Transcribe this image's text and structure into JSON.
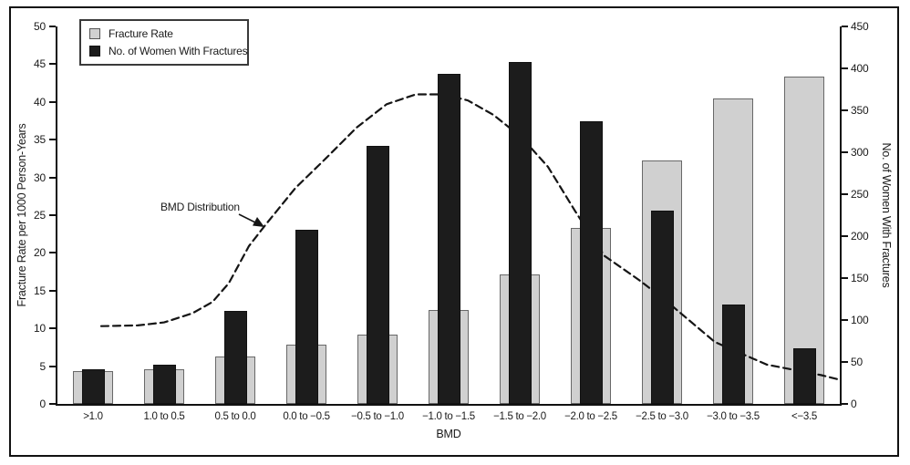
{
  "figure": {
    "legend": [
      {
        "label": "Fracture Rate",
        "swatch_color": "#d0d0d0"
      },
      {
        "label": "No. of Women With Fractures",
        "swatch_color": "#1c1c1c"
      }
    ],
    "annotation": "BMD Distribution",
    "colors": {
      "fracture_rate_bar": "#d0d0d0",
      "women_count_bar": "#1c1c1c",
      "axis": "#111111"
    }
  },
  "chart_data": {
    "type": "bar",
    "title": "",
    "xlabel": "BMD",
    "ylabel": "Fracture Rate per 1000 Person-Years",
    "ylabel_right": "No. of Women With Fractures",
    "categories": [
      ">1.0",
      "1.0 to 0.5",
      "0.5 to 0.0",
      "0.0 to −0.5",
      "−0.5 to −1.0",
      "−1.0 to −1.5",
      "−1.5 to −2.0",
      "−2.0 to −2.5",
      "−2.5 to −3.0",
      "−3.0 to −3.5",
      "<−3.5"
    ],
    "series": [
      {
        "name": "Fracture Rate",
        "axis": "left",
        "color": "#d0d0d0",
        "values": [
          4.3,
          4.6,
          6.3,
          7.8,
          9.2,
          12.4,
          17.1,
          23.3,
          32.2,
          40.5,
          43.4
        ]
      },
      {
        "name": "No. of Women With Fractures",
        "axis": "right",
        "color": "#1c1c1c",
        "values": [
          41,
          47,
          111,
          208,
          308,
          393,
          408,
          337,
          230,
          118,
          66
        ]
      }
    ],
    "curve": {
      "name": "BMD Distribution",
      "axis": "left",
      "style": "dashed",
      "points": [
        [
          48,
          10.3
        ],
        [
          88,
          10.4
        ],
        [
          117,
          10.8
        ],
        [
          148,
          12.0
        ],
        [
          170,
          13.5
        ],
        [
          188,
          16.0
        ],
        [
          210,
          20.9
        ],
        [
          228,
          23.7
        ],
        [
          261,
          28.6
        ],
        [
          295,
          32.6
        ],
        [
          328,
          36.6
        ],
        [
          361,
          39.7
        ],
        [
          393,
          41.0
        ],
        [
          423,
          41.0
        ],
        [
          450,
          40.2
        ],
        [
          478,
          38.3
        ],
        [
          509,
          35.3
        ],
        [
          538,
          31.4
        ],
        [
          568,
          25.5
        ],
        [
          585,
          22.3
        ],
        [
          600,
          19.6
        ],
        [
          638,
          16.4
        ],
        [
          668,
          13.6
        ],
        [
          721,
          8.2
        ],
        [
          778,
          5.2
        ],
        [
          838,
          3.8
        ],
        [
          858,
          3.2
        ]
      ]
    },
    "ylim_left": [
      0,
      50
    ],
    "ylim_right": [
      0,
      450
    ],
    "yticks_left": [
      0,
      5,
      10,
      15,
      20,
      25,
      30,
      35,
      40,
      45,
      50
    ],
    "yticks_right": [
      0,
      50,
      100,
      150,
      200,
      250,
      300,
      350,
      400,
      450
    ],
    "legend_position": "upper left",
    "grid": false
  }
}
